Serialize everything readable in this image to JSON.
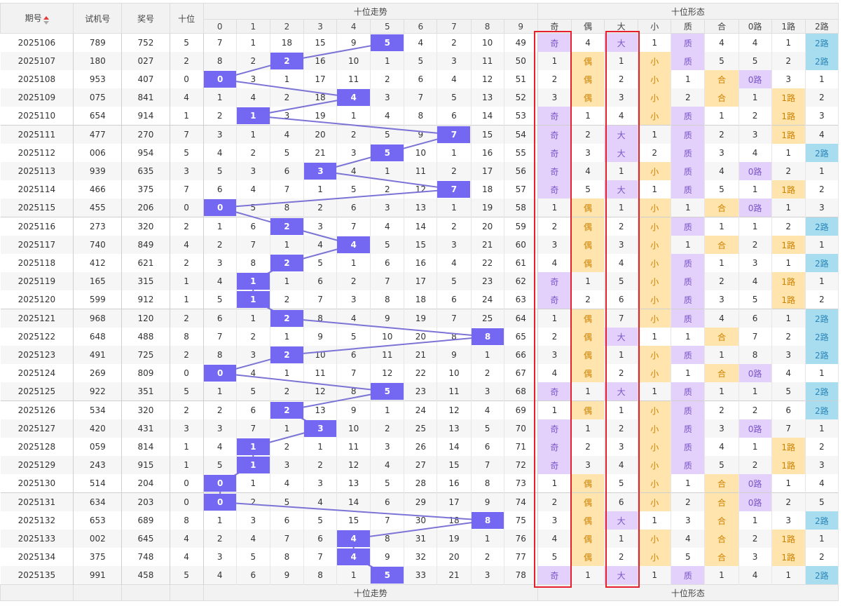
{
  "headers": {
    "period": "期号",
    "trial": "试机号",
    "prize": "奖号",
    "tens": "十位",
    "trend_group": "十位走势",
    "form_group": "十位形态",
    "digits": [
      "0",
      "1",
      "2",
      "3",
      "4",
      "5",
      "6",
      "7",
      "8",
      "9"
    ],
    "forms": [
      "奇",
      "偶",
      "大",
      "小",
      "质",
      "合",
      "0路",
      "1路",
      "2路"
    ]
  },
  "footer": {
    "trend_group": "十位走势",
    "form_group": "十位形态"
  },
  "colors": {
    "hit": "#7468f2",
    "purple_cell": "#e3d0fb",
    "orange_cell": "#ffe4ae",
    "blue_cell": "#a8ddf0",
    "highlight_box": "#e5202c"
  },
  "rows": [
    {
      "period": "2025106",
      "trial": "789",
      "prize": "752",
      "tens": "5",
      "trend": [
        "7",
        "1",
        "18",
        "15",
        "9",
        "5",
        "4",
        "2",
        "10",
        "49"
      ],
      "forms": [
        "奇",
        "4",
        "大",
        "1",
        "质",
        "4",
        "4",
        "1",
        "2路"
      ]
    },
    {
      "period": "2025107",
      "trial": "180",
      "prize": "027",
      "tens": "2",
      "trend": [
        "8",
        "2",
        "2",
        "16",
        "10",
        "1",
        "5",
        "3",
        "11",
        "50"
      ],
      "forms": [
        "1",
        "偶",
        "1",
        "小",
        "质",
        "5",
        "5",
        "2",
        "2路"
      ]
    },
    {
      "period": "2025108",
      "trial": "953",
      "prize": "407",
      "tens": "0",
      "trend": [
        "0",
        "3",
        "1",
        "17",
        "11",
        "2",
        "6",
        "4",
        "12",
        "51"
      ],
      "forms": [
        "2",
        "偶",
        "2",
        "小",
        "1",
        "合",
        "0路",
        "3",
        "1"
      ]
    },
    {
      "period": "2025109",
      "trial": "075",
      "prize": "841",
      "tens": "4",
      "trend": [
        "1",
        "4",
        "2",
        "18",
        "4",
        "3",
        "7",
        "5",
        "13",
        "52"
      ],
      "forms": [
        "3",
        "偶",
        "3",
        "小",
        "2",
        "合",
        "1",
        "1路",
        "2"
      ]
    },
    {
      "period": "2025110",
      "trial": "654",
      "prize": "914",
      "tens": "1",
      "trend": [
        "2",
        "1",
        "3",
        "19",
        "1",
        "4",
        "8",
        "6",
        "14",
        "53"
      ],
      "forms": [
        "奇",
        "1",
        "4",
        "小",
        "质",
        "1",
        "2",
        "1路",
        "3"
      ]
    },
    {
      "period": "2025111",
      "trial": "477",
      "prize": "270",
      "tens": "7",
      "trend": [
        "3",
        "1",
        "4",
        "20",
        "2",
        "5",
        "9",
        "7",
        "15",
        "54"
      ],
      "forms": [
        "奇",
        "2",
        "大",
        "1",
        "质",
        "2",
        "3",
        "1路",
        "4"
      ]
    },
    {
      "period": "2025112",
      "trial": "006",
      "prize": "954",
      "tens": "5",
      "trend": [
        "4",
        "2",
        "5",
        "21",
        "3",
        "5",
        "10",
        "1",
        "16",
        "55"
      ],
      "forms": [
        "奇",
        "3",
        "大",
        "2",
        "质",
        "3",
        "4",
        "1",
        "2路"
      ]
    },
    {
      "period": "2025113",
      "trial": "939",
      "prize": "635",
      "tens": "3",
      "trend": [
        "5",
        "3",
        "6",
        "3",
        "4",
        "1",
        "11",
        "2",
        "17",
        "56"
      ],
      "forms": [
        "奇",
        "4",
        "1",
        "小",
        "质",
        "4",
        "0路",
        "2",
        "1"
      ]
    },
    {
      "period": "2025114",
      "trial": "466",
      "prize": "375",
      "tens": "7",
      "trend": [
        "6",
        "4",
        "7",
        "1",
        "5",
        "2",
        "12",
        "7",
        "18",
        "57"
      ],
      "forms": [
        "奇",
        "5",
        "大",
        "1",
        "质",
        "5",
        "1",
        "1路",
        "2"
      ]
    },
    {
      "period": "2025115",
      "trial": "455",
      "prize": "206",
      "tens": "0",
      "trend": [
        "0",
        "5",
        "8",
        "2",
        "6",
        "3",
        "13",
        "1",
        "19",
        "58"
      ],
      "forms": [
        "1",
        "偶",
        "1",
        "小",
        "1",
        "合",
        "0路",
        "1",
        "3"
      ]
    },
    {
      "period": "2025116",
      "trial": "273",
      "prize": "320",
      "tens": "2",
      "trend": [
        "1",
        "6",
        "2",
        "3",
        "7",
        "4",
        "14",
        "2",
        "20",
        "59"
      ],
      "forms": [
        "2",
        "偶",
        "2",
        "小",
        "质",
        "1",
        "1",
        "2",
        "2路"
      ]
    },
    {
      "period": "2025117",
      "trial": "740",
      "prize": "849",
      "tens": "4",
      "trend": [
        "2",
        "7",
        "1",
        "4",
        "4",
        "5",
        "15",
        "3",
        "21",
        "60"
      ],
      "forms": [
        "3",
        "偶",
        "3",
        "小",
        "1",
        "合",
        "2",
        "1路",
        "1"
      ]
    },
    {
      "period": "2025118",
      "trial": "412",
      "prize": "621",
      "tens": "2",
      "trend": [
        "3",
        "8",
        "2",
        "5",
        "1",
        "6",
        "16",
        "4",
        "22",
        "61"
      ],
      "forms": [
        "4",
        "偶",
        "4",
        "小",
        "质",
        "1",
        "3",
        "1",
        "2路"
      ]
    },
    {
      "period": "2025119",
      "trial": "165",
      "prize": "315",
      "tens": "1",
      "trend": [
        "4",
        "1",
        "1",
        "6",
        "2",
        "7",
        "17",
        "5",
        "23",
        "62"
      ],
      "forms": [
        "奇",
        "1",
        "5",
        "小",
        "质",
        "2",
        "4",
        "1路",
        "1"
      ]
    },
    {
      "period": "2025120",
      "trial": "599",
      "prize": "912",
      "tens": "1",
      "trend": [
        "5",
        "1",
        "2",
        "7",
        "3",
        "8",
        "18",
        "6",
        "24",
        "63"
      ],
      "forms": [
        "奇",
        "2",
        "6",
        "小",
        "质",
        "3",
        "5",
        "1路",
        "2"
      ]
    },
    {
      "period": "2025121",
      "trial": "968",
      "prize": "120",
      "tens": "2",
      "trend": [
        "6",
        "1",
        "2",
        "8",
        "4",
        "9",
        "19",
        "7",
        "25",
        "64"
      ],
      "forms": [
        "1",
        "偶",
        "7",
        "小",
        "质",
        "4",
        "6",
        "1",
        "2路"
      ]
    },
    {
      "period": "2025122",
      "trial": "648",
      "prize": "488",
      "tens": "8",
      "trend": [
        "7",
        "2",
        "1",
        "9",
        "5",
        "10",
        "20",
        "8",
        "8",
        "65"
      ],
      "forms": [
        "2",
        "偶",
        "大",
        "1",
        "1",
        "合",
        "7",
        "2",
        "2路"
      ]
    },
    {
      "period": "2025123",
      "trial": "491",
      "prize": "725",
      "tens": "2",
      "trend": [
        "8",
        "3",
        "2",
        "10",
        "6",
        "11",
        "21",
        "9",
        "1",
        "66"
      ],
      "forms": [
        "3",
        "偶",
        "1",
        "小",
        "质",
        "1",
        "8",
        "3",
        "2路"
      ]
    },
    {
      "period": "2025124",
      "trial": "269",
      "prize": "809",
      "tens": "0",
      "trend": [
        "0",
        "4",
        "1",
        "11",
        "7",
        "12",
        "22",
        "10",
        "2",
        "67"
      ],
      "forms": [
        "4",
        "偶",
        "2",
        "小",
        "1",
        "合",
        "0路",
        "4",
        "1"
      ]
    },
    {
      "period": "2025125",
      "trial": "922",
      "prize": "351",
      "tens": "5",
      "trend": [
        "1",
        "5",
        "2",
        "12",
        "8",
        "5",
        "23",
        "11",
        "3",
        "68"
      ],
      "forms": [
        "奇",
        "1",
        "大",
        "1",
        "质",
        "1",
        "1",
        "5",
        "2路"
      ]
    },
    {
      "period": "2025126",
      "trial": "534",
      "prize": "320",
      "tens": "2",
      "trend": [
        "2",
        "6",
        "2",
        "13",
        "9",
        "1",
        "24",
        "12",
        "4",
        "69"
      ],
      "forms": [
        "1",
        "偶",
        "1",
        "小",
        "质",
        "2",
        "2",
        "6",
        "2路"
      ]
    },
    {
      "period": "2025127",
      "trial": "420",
      "prize": "431",
      "tens": "3",
      "trend": [
        "3",
        "7",
        "1",
        "3",
        "10",
        "2",
        "25",
        "13",
        "5",
        "70"
      ],
      "forms": [
        "奇",
        "1",
        "2",
        "小",
        "质",
        "3",
        "0路",
        "7",
        "1"
      ]
    },
    {
      "period": "2025128",
      "trial": "059",
      "prize": "814",
      "tens": "1",
      "trend": [
        "4",
        "1",
        "2",
        "1",
        "11",
        "3",
        "26",
        "14",
        "6",
        "71"
      ],
      "forms": [
        "奇",
        "2",
        "3",
        "小",
        "质",
        "4",
        "1",
        "1路",
        "2"
      ]
    },
    {
      "period": "2025129",
      "trial": "243",
      "prize": "915",
      "tens": "1",
      "trend": [
        "5",
        "1",
        "3",
        "2",
        "12",
        "4",
        "27",
        "15",
        "7",
        "72"
      ],
      "forms": [
        "奇",
        "3",
        "4",
        "小",
        "质",
        "5",
        "2",
        "1路",
        "3"
      ]
    },
    {
      "period": "2025130",
      "trial": "514",
      "prize": "204",
      "tens": "0",
      "trend": [
        "0",
        "1",
        "4",
        "3",
        "13",
        "5",
        "28",
        "16",
        "8",
        "73"
      ],
      "forms": [
        "1",
        "偶",
        "5",
        "小",
        "1",
        "合",
        "0路",
        "1",
        "4"
      ]
    },
    {
      "period": "2025131",
      "trial": "634",
      "prize": "203",
      "tens": "0",
      "trend": [
        "0",
        "2",
        "5",
        "4",
        "14",
        "6",
        "29",
        "17",
        "9",
        "74"
      ],
      "forms": [
        "2",
        "偶",
        "6",
        "小",
        "2",
        "合",
        "0路",
        "2",
        "5"
      ]
    },
    {
      "period": "2025132",
      "trial": "653",
      "prize": "689",
      "tens": "8",
      "trend": [
        "1",
        "3",
        "6",
        "5",
        "15",
        "7",
        "30",
        "18",
        "8",
        "75"
      ],
      "forms": [
        "3",
        "偶",
        "大",
        "1",
        "3",
        "合",
        "1",
        "3",
        "2路"
      ]
    },
    {
      "period": "2025133",
      "trial": "002",
      "prize": "645",
      "tens": "4",
      "trend": [
        "2",
        "4",
        "7",
        "6",
        "4",
        "8",
        "31",
        "19",
        "1",
        "76"
      ],
      "forms": [
        "4",
        "偶",
        "1",
        "小",
        "4",
        "合",
        "2",
        "1路",
        "1"
      ]
    },
    {
      "period": "2025134",
      "trial": "375",
      "prize": "748",
      "tens": "4",
      "trend": [
        "3",
        "5",
        "8",
        "7",
        "4",
        "9",
        "32",
        "20",
        "2",
        "77"
      ],
      "forms": [
        "5",
        "偶",
        "2",
        "小",
        "5",
        "合",
        "3",
        "1路",
        "2"
      ]
    },
    {
      "period": "2025135",
      "trial": "991",
      "prize": "458",
      "tens": "5",
      "trend": [
        "4",
        "6",
        "9",
        "8",
        "1",
        "5",
        "33",
        "21",
        "3",
        "78"
      ],
      "forms": [
        "奇",
        "1",
        "大",
        "1",
        "质",
        "1",
        "4",
        "1",
        "2路"
      ]
    }
  ]
}
